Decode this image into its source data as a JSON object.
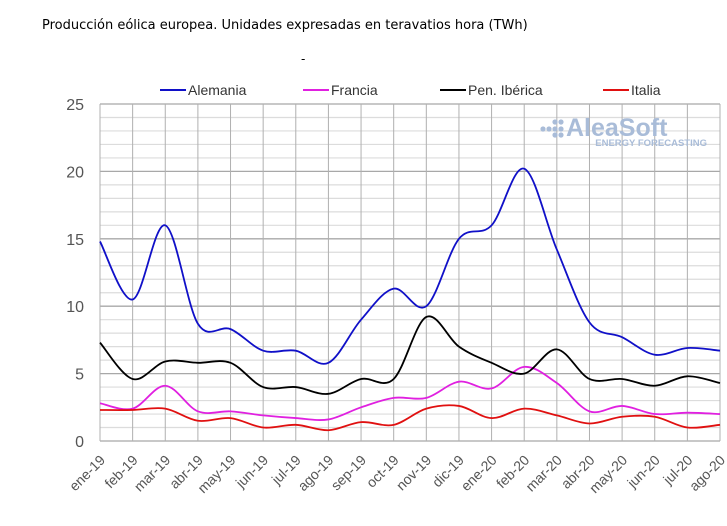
{
  "chart_data": {
    "type": "line",
    "title": "Producción eólica europea. Unidades expresadas en teravatios hora (TWh)",
    "subtitle": "-",
    "xlabel": "",
    "ylabel": "",
    "ylim": [
      0,
      25
    ],
    "yticks": [
      "0",
      "5",
      "10",
      "15",
      "20",
      "25"
    ],
    "grid": true,
    "legend_position": "top",
    "watermark": {
      "brand": "AleaSoft",
      "tagline": "ENERGY FORECASTING"
    },
    "categories": [
      "ene-19",
      "feb-19",
      "mar-19",
      "abr-19",
      "may-19",
      "jun-19",
      "jul-19",
      "ago-19",
      "sep-19",
      "oct-19",
      "nov-19",
      "dic-19",
      "ene-20",
      "feb-20",
      "mar-20",
      "abr-20",
      "may-20",
      "jun-20",
      "jul-20",
      "ago-20"
    ],
    "series": [
      {
        "name": "Alemania",
        "color": "#1010c8",
        "values": [
          14.8,
          10.5,
          16.0,
          8.7,
          8.3,
          6.7,
          6.7,
          5.8,
          9.0,
          11.3,
          10.0,
          15.0,
          16.0,
          20.2,
          14.2,
          8.8,
          7.7,
          6.4,
          6.9,
          6.7
        ]
      },
      {
        "name": "Francia",
        "color": "#e020e0",
        "values": [
          2.8,
          2.4,
          4.1,
          2.2,
          2.2,
          1.9,
          1.7,
          1.6,
          2.5,
          3.2,
          3.2,
          4.4,
          3.9,
          5.5,
          4.3,
          2.2,
          2.6,
          2.0,
          2.1,
          2.0
        ]
      },
      {
        "name": "Pen. Ibérica",
        "color": "#000000",
        "values": [
          7.3,
          4.6,
          5.9,
          5.8,
          5.8,
          4.0,
          4.0,
          3.5,
          4.6,
          4.6,
          9.2,
          7.0,
          5.8,
          5.0,
          6.8,
          4.6,
          4.6,
          4.1,
          4.8,
          4.3
        ]
      },
      {
        "name": "Italia",
        "color": "#e01010",
        "values": [
          2.3,
          2.3,
          2.4,
          1.5,
          1.7,
          1.0,
          1.2,
          0.8,
          1.4,
          1.2,
          2.4,
          2.6,
          1.7,
          2.4,
          1.9,
          1.3,
          1.8,
          1.8,
          1.0,
          1.2
        ]
      }
    ]
  }
}
